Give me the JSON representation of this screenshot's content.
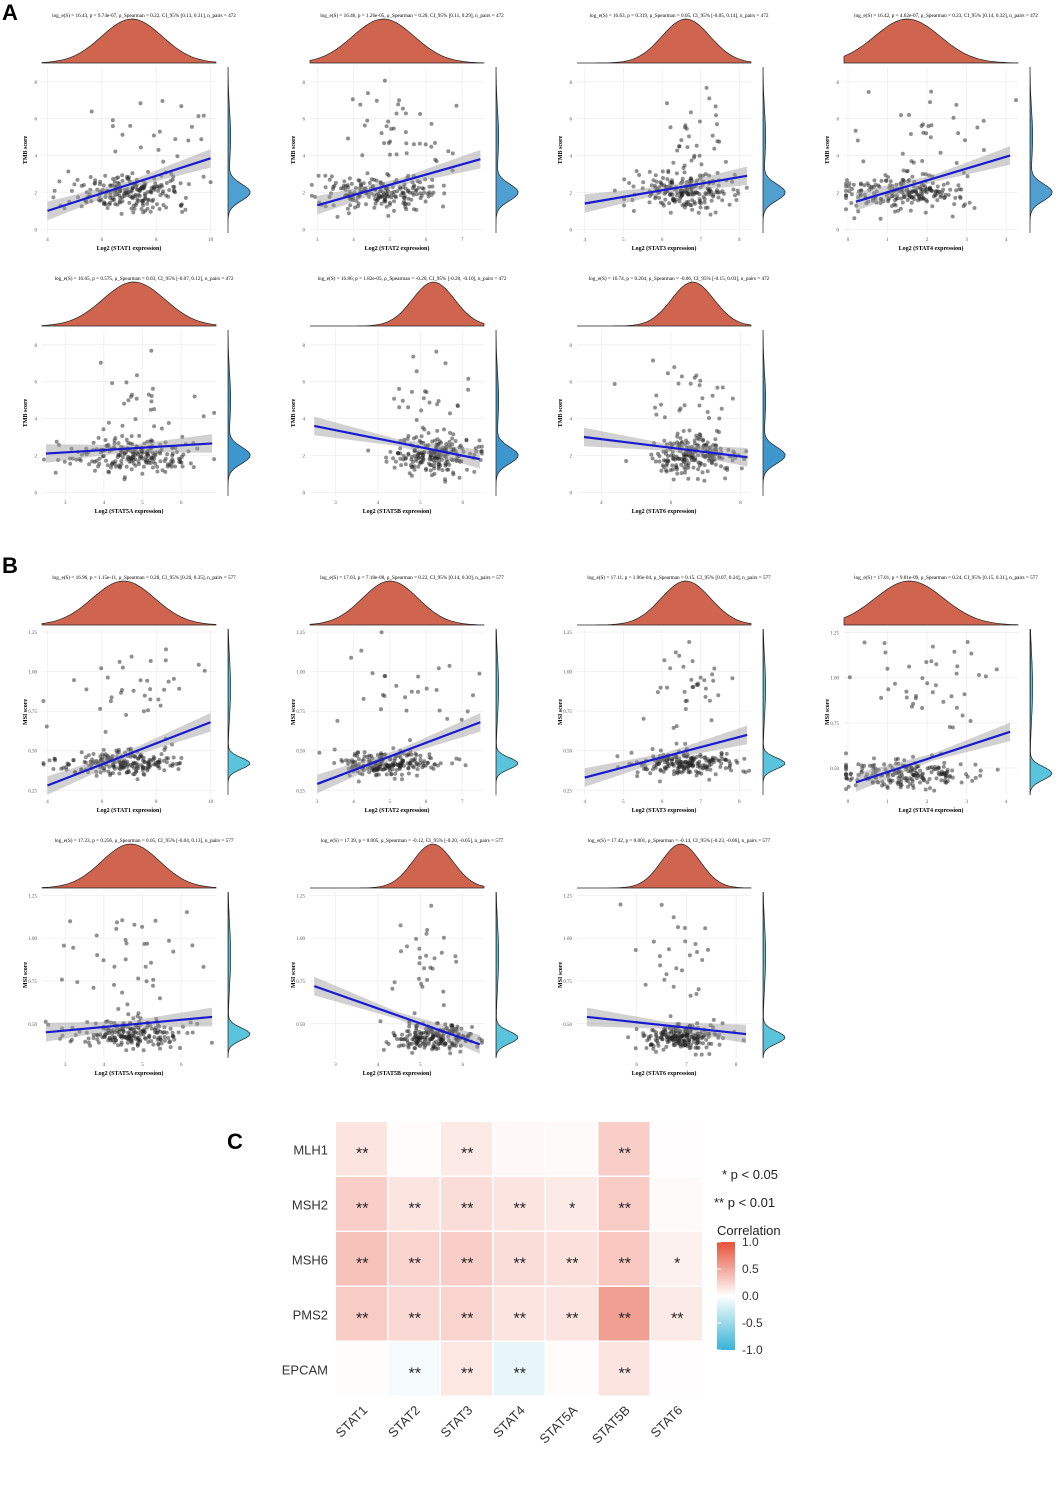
{
  "panel_labels": {
    "A": "A",
    "B": "B",
    "C": "C"
  },
  "chart_data": [
    {
      "type": "scatter",
      "id": "tmb-stat1",
      "title": "log_e(S) = 16.43, p = 9.74e-07, ρ_Spearman = 0.22, CI_95% [0.13, 0.31], n_pairs = 472",
      "xlabel": "Log2 (STAT1 expression)",
      "ylabel": "TMB score",
      "xticks": [
        4,
        6,
        8,
        10
      ],
      "xlim": [
        3.8,
        10.2
      ],
      "yticks": [
        0,
        2,
        4,
        6,
        8
      ],
      "ylim": [
        -0.2,
        8.8
      ],
      "fit": {
        "x": [
          4,
          10
        ],
        "y": [
          1.0,
          3.85
        ]
      },
      "fill_color": "#4f9fd0",
      "cluster": {
        "x": 7,
        "y": 2,
        "sx": 1.1,
        "sy": 0.5
      },
      "high": {
        "x": 7.5,
        "y": 5,
        "sx": 1.2,
        "sy": 1.2
      }
    },
    {
      "type": "scatter",
      "id": "tmb-stat2",
      "title": "log_e(S) = 16.46, p = 1.26e-05, ρ_Spearman = 0.20, CI_95% [0.11, 0.29], n_pairs = 472",
      "xlabel": "Log2 (STAT2 expression)",
      "ylabel": "TMB score",
      "xticks": [
        3,
        4,
        5,
        6,
        7
      ],
      "xlim": [
        2.8,
        7.6
      ],
      "yticks": [
        0,
        2,
        4,
        6,
        8
      ],
      "ylim": [
        -0.2,
        8.8
      ],
      "fit": {
        "x": [
          3,
          7.5
        ],
        "y": [
          1.3,
          3.8
        ]
      },
      "fill_color": "#4f9fd0",
      "cluster": {
        "x": 4.8,
        "y": 2,
        "sx": 0.8,
        "sy": 0.5
      },
      "high": {
        "x": 5.3,
        "y": 5,
        "sx": 0.9,
        "sy": 1.2
      }
    },
    {
      "type": "scatter",
      "id": "tmb-stat3",
      "title": "log_e(S) = 16.63, p = 0.319, ρ_Spearman = 0.05, CI_95% [-0.05, 0.14], n_pairs = 472",
      "xlabel": "Log2 (STAT3 expression)",
      "ylabel": "TMB score",
      "xticks": [
        4,
        5,
        6,
        7,
        8
      ],
      "xlim": [
        3.8,
        8.3
      ],
      "yticks": [
        0,
        2,
        4,
        6,
        8
      ],
      "ylim": [
        -0.2,
        8.8
      ],
      "fit": {
        "x": [
          4,
          8.2
        ],
        "y": [
          1.4,
          2.9
        ]
      },
      "fill_color": "#4f9fd0",
      "cluster": {
        "x": 6.6,
        "y": 2,
        "sx": 0.6,
        "sy": 0.5
      },
      "high": {
        "x": 6.8,
        "y": 5,
        "sx": 0.5,
        "sy": 1.2
      }
    },
    {
      "type": "scatter",
      "id": "tmb-stat4",
      "title": "log_e(S) = 16.42, p = 4.62e-07, ρ_Spearman = 0.23, CI_95% [0.14, 0.32], n_pairs = 472",
      "xlabel": "Log2 (STAT4 expression)",
      "ylabel": "TMB score",
      "xticks": [
        0,
        1,
        2,
        3,
        4
      ],
      "xlim": [
        -0.1,
        4.3
      ],
      "yticks": [
        0,
        2,
        4,
        6,
        8
      ],
      "ylim": [
        -0.2,
        8.8
      ],
      "fit": {
        "x": [
          0.2,
          4.1
        ],
        "y": [
          1.5,
          4.0
        ]
      },
      "fill_color": "#4f9fd0",
      "cluster": {
        "x": 1.4,
        "y": 2,
        "sx": 0.8,
        "sy": 0.5
      },
      "high": {
        "x": 1.8,
        "y": 5,
        "sx": 0.9,
        "sy": 1.2
      }
    },
    {
      "type": "scatter",
      "id": "tmb-stat5a",
      "title": "log_e(S) = 16.65, p = 0.575, ρ_Spearman = 0.03, CI_95% [-0.07, 0.12], n_pairs = 472",
      "xlabel": "Log2 (STAT5A expression)",
      "ylabel": "TMB score",
      "xticks": [
        3,
        4,
        5,
        6
      ],
      "xlim": [
        2.4,
        6.9
      ],
      "yticks": [
        0,
        2,
        4,
        6,
        8
      ],
      "ylim": [
        -0.2,
        8.8
      ],
      "fit": {
        "x": [
          2.5,
          6.8
        ],
        "y": [
          2.1,
          2.65
        ]
      },
      "fill_color": "#3d96ce",
      "cluster": {
        "x": 4.8,
        "y": 2,
        "sx": 0.8,
        "sy": 0.5
      },
      "high": {
        "x": 4.8,
        "y": 5,
        "sx": 0.9,
        "sy": 1.2
      }
    },
    {
      "type": "scatter",
      "id": "tmb-stat5b",
      "title": "log_e(S) = 16.86, p = 1.82e-05, ρ_Spearman = -0.20, CI_95% [-0.28, -0.10], n_pairs = 472",
      "xlabel": "Log2 (STAT5B expression)",
      "ylabel": "TMB score",
      "xticks": [
        3,
        4,
        5,
        6
      ],
      "xlim": [
        2.4,
        6.5
      ],
      "yticks": [
        0,
        2,
        4,
        6,
        8
      ],
      "ylim": [
        -0.2,
        8.8
      ],
      "fit": {
        "x": [
          2.5,
          6.4
        ],
        "y": [
          3.6,
          1.8
        ]
      },
      "fill_color": "#3d96ce",
      "cluster": {
        "x": 5.3,
        "y": 2,
        "sx": 0.5,
        "sy": 0.5
      },
      "high": {
        "x": 5.2,
        "y": 5,
        "sx": 0.5,
        "sy": 1.2
      }
    },
    {
      "type": "scatter",
      "id": "tmb-stat6",
      "title": "log_e(S) = 16.74, p = 0.204, ρ_Spearman = -0.06, CI_95% [-0.15, 0.03], n_pairs = 472",
      "xlabel": "Log2 (STAT6 expression)",
      "ylabel": "TMB score",
      "xticks": [
        4,
        6,
        8
      ],
      "xlim": [
        3.3,
        8.3
      ],
      "yticks": [
        0,
        2,
        4,
        6,
        8
      ],
      "ylim": [
        -0.2,
        8.8
      ],
      "fit": {
        "x": [
          3.5,
          8.2
        ],
        "y": [
          3.0,
          1.9
        ]
      },
      "fill_color": "#3d96ce",
      "cluster": {
        "x": 6.6,
        "y": 2,
        "sx": 0.6,
        "sy": 0.5
      },
      "high": {
        "x": 6.6,
        "y": 5,
        "sx": 0.7,
        "sy": 1.2
      }
    },
    {
      "type": "scatter",
      "id": "msi-stat1",
      "title": "log_e(S) = 16.96, p = 1.15e-11, ρ_Spearman = 0.28, CI_95% [0.20, 0.35], n_pairs = 577",
      "xlabel": "Log2 (STAT1 expression)",
      "ylabel": "MSI score",
      "xticks": [
        4,
        6,
        8,
        10
      ],
      "xlim": [
        3.8,
        10.2
      ],
      "yticks": [
        0.25,
        0.5,
        0.75,
        1.0,
        1.25
      ],
      "yticklabels": [
        "0.25",
        "0.50",
        "0.75",
        "1.00",
        "1.25"
      ],
      "ylim": [
        0.22,
        1.27
      ],
      "fit": {
        "x": [
          4,
          10
        ],
        "y": [
          0.28,
          0.68
        ]
      },
      "fill_color": "#5bc4dd",
      "cluster": {
        "x": 6.8,
        "y": 0.42,
        "sx": 1.1,
        "sy": 0.04
      },
      "high": {
        "x": 7.2,
        "y": 0.9,
        "sx": 1.2,
        "sy": 0.15
      }
    },
    {
      "type": "scatter",
      "id": "msi-stat2",
      "title": "log_e(S) = 17.03, p = 7.18e-08, ρ_Spearman = 0.22, CI_95% [0.14, 0.30], n_pairs = 577",
      "xlabel": "Log2 (STAT2 expression)",
      "ylabel": "MSI score",
      "xticks": [
        3,
        4,
        5,
        6,
        7
      ],
      "xlim": [
        2.8,
        7.6
      ],
      "yticks": [
        0.25,
        0.5,
        0.75,
        1.0,
        1.25
      ],
      "yticklabels": [
        "0.25",
        "0.50",
        "0.75",
        "1.00",
        "1.25"
      ],
      "ylim": [
        0.22,
        1.27
      ],
      "fit": {
        "x": [
          3,
          7.5
        ],
        "y": [
          0.29,
          0.68
        ]
      },
      "fill_color": "#5bc4dd",
      "cluster": {
        "x": 4.9,
        "y": 0.42,
        "sx": 0.8,
        "sy": 0.04
      },
      "high": {
        "x": 5.3,
        "y": 0.9,
        "sx": 0.9,
        "sy": 0.15
      }
    },
    {
      "type": "scatter",
      "id": "msi-stat3",
      "title": "log_e(S) = 17.11, p = 1.96e-04, ρ_Spearman = 0.15, CI_95% [0.07, 0.24], n_pairs = 577",
      "xlabel": "Log2 (STAT3 expression)",
      "ylabel": "MSI score",
      "xticks": [
        4,
        5,
        6,
        7,
        8
      ],
      "xlim": [
        3.8,
        8.3
      ],
      "yticks": [
        0.25,
        0.5,
        0.75,
        1.0,
        1.25
      ],
      "yticklabels": [
        "0.25",
        "0.50",
        "0.75",
        "1.00",
        "1.25"
      ],
      "ylim": [
        0.22,
        1.27
      ],
      "fit": {
        "x": [
          4,
          8.2
        ],
        "y": [
          0.33,
          0.6
        ]
      },
      "fill_color": "#5bc4dd",
      "cluster": {
        "x": 6.6,
        "y": 0.42,
        "sx": 0.6,
        "sy": 0.04
      },
      "high": {
        "x": 6.8,
        "y": 0.9,
        "sx": 0.5,
        "sy": 0.15
      }
    },
    {
      "type": "scatter",
      "id": "msi-stat4",
      "title": "log_e(S) = 17.01, p = 9.81e-09, ρ_Spearman = 0.24, CI_95% [0.15, 0.31], n_pairs = 577",
      "xlabel": "Log2 (STAT4 expression)",
      "ylabel": "MSI score",
      "xticks": [
        0,
        1,
        2,
        3,
        4
      ],
      "xlim": [
        -0.1,
        4.3
      ],
      "yticks": [
        0.5,
        0.75,
        1.0,
        1.25
      ],
      "yticklabels": [
        "0.50",
        "0.75",
        "1.00",
        "1.25"
      ],
      "ylim": [
        0.35,
        1.27
      ],
      "fit": {
        "x": [
          0.2,
          4.1
        ],
        "y": [
          0.42,
          0.7
        ]
      },
      "fill_color": "#5bc4dd",
      "cluster": {
        "x": 1.4,
        "y": 0.47,
        "sx": 0.8,
        "sy": 0.04
      },
      "high": {
        "x": 1.8,
        "y": 0.95,
        "sx": 0.9,
        "sy": 0.15
      }
    },
    {
      "type": "scatter",
      "id": "msi-stat5a",
      "title": "log_e(S) = 17.23, p = 0.256, ρ_Spearman = 0.05, CI_95% [-0.04, 0.13], n_pairs = 577",
      "xlabel": "Log2 (STAT5A expression)",
      "ylabel": "MSI score",
      "xticks": [
        3,
        4,
        5,
        6
      ],
      "xlim": [
        2.4,
        6.9
      ],
      "yticks": [
        0.5,
        0.75,
        1.0,
        1.25
      ],
      "yticklabels": [
        "0.50",
        "0.75",
        "1.00",
        "1.25"
      ],
      "ylim": [
        0.3,
        1.27
      ],
      "fit": {
        "x": [
          2.5,
          6.8
        ],
        "y": [
          0.45,
          0.54
        ]
      },
      "fill_color": "#5bc4dd",
      "cluster": {
        "x": 4.8,
        "y": 0.44,
        "sx": 0.8,
        "sy": 0.04
      },
      "high": {
        "x": 4.8,
        "y": 0.9,
        "sx": 0.9,
        "sy": 0.15
      }
    },
    {
      "type": "scatter",
      "id": "msi-stat5b",
      "title": "log_e(S) = 17.39, p = 0.005, ρ_Spearman = -0.12, CI_95% [-0.20, -0.05], n_pairs = 577",
      "xlabel": "Log2 (STAT5B expression)",
      "ylabel": "MSI score",
      "xticks": [
        3,
        4,
        5,
        6
      ],
      "xlim": [
        2.4,
        6.5
      ],
      "yticks": [
        0.5,
        0.75,
        1.0,
        1.25
      ],
      "yticklabels": [
        "0.50",
        "0.75",
        "1.00",
        "1.25"
      ],
      "ylim": [
        0.3,
        1.27
      ],
      "fit": {
        "x": [
          2.5,
          6.4
        ],
        "y": [
          0.72,
          0.38
        ]
      },
      "fill_color": "#5bc4dd",
      "cluster": {
        "x": 5.3,
        "y": 0.42,
        "sx": 0.5,
        "sy": 0.04
      },
      "high": {
        "x": 5.2,
        "y": 0.9,
        "sx": 0.5,
        "sy": 0.15
      }
    },
    {
      "type": "scatter",
      "id": "msi-stat6",
      "title": "log_e(S) = 17.42, p = 0.001, ρ_Spearman = -0.14, CI_95% [-0.23, -0.06], n_pairs = 577",
      "xlabel": "Log2 (STAT6 expression)",
      "ylabel": "MSI score",
      "xticks": [
        6,
        7,
        8
      ],
      "xlim": [
        4.8,
        8.3
      ],
      "yticks": [
        0.5,
        0.75,
        1.0,
        1.25
      ],
      "yticklabels": [
        "0.50",
        "0.75",
        "1.00",
        "1.25"
      ],
      "ylim": [
        0.3,
        1.27
      ],
      "fit": {
        "x": [
          5,
          8.2
        ],
        "y": [
          0.54,
          0.44
        ]
      },
      "fill_color": "#5bc4dd",
      "cluster": {
        "x": 6.9,
        "y": 0.42,
        "sx": 0.4,
        "sy": 0.04
      },
      "high": {
        "x": 6.9,
        "y": 0.9,
        "sx": 0.4,
        "sy": 0.15
      }
    },
    {
      "type": "heatmap",
      "id": "mmr-heatmap",
      "rows": [
        "MLH1",
        "MSH2",
        "MSH6",
        "PMS2",
        "EPCAM"
      ],
      "cols": [
        "STAT1",
        "STAT2",
        "STAT3",
        "STAT4",
        "STAT5A",
        "STAT5B",
        "STAT6"
      ],
      "values": [
        [
          0.15,
          0.02,
          0.12,
          0.04,
          0.03,
          0.28,
          0.01
        ],
        [
          0.28,
          0.15,
          0.2,
          0.15,
          0.12,
          0.3,
          0.03
        ],
        [
          0.35,
          0.25,
          0.28,
          0.2,
          0.18,
          0.32,
          0.08
        ],
        [
          0.3,
          0.22,
          0.25,
          0.15,
          0.15,
          0.55,
          0.12
        ],
        [
          0.02,
          -0.05,
          0.14,
          -0.12,
          0.02,
          0.15,
          0.01
        ]
      ],
      "stars": [
        [
          "**",
          "",
          "**",
          "",
          "",
          "**",
          ""
        ],
        [
          "**",
          "**",
          "**",
          "**",
          "*",
          "**",
          ""
        ],
        [
          "**",
          "**",
          "**",
          "**",
          "**",
          "**",
          "*"
        ],
        [
          "**",
          "**",
          "**",
          "**",
          "**",
          "**",
          "**"
        ],
        [
          "",
          "**",
          "**",
          "**",
          "",
          "**",
          ""
        ]
      ],
      "legend": {
        "sig1": "* p < 0.05",
        "sig2": "** p < 0.01",
        "title": "Correlation",
        "ticks": [
          "1.0",
          "0.5",
          "0.0",
          "-0.5",
          "-1.0"
        ]
      },
      "colors": {
        "pos": "#e8503a",
        "neg": "#36b3d6",
        "neutral": "#ffffff"
      }
    }
  ]
}
